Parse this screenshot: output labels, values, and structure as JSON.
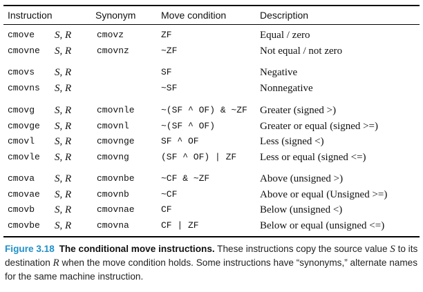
{
  "table": {
    "headers": {
      "instruction": "Instruction",
      "synonym": "Synonym",
      "condition": "Move condition",
      "description": "Description"
    },
    "groups": [
      [
        {
          "instruction": "cmove",
          "operands": "S, R",
          "synonym": "cmovz",
          "condition": "ZF",
          "description": "Equal / zero"
        },
        {
          "instruction": "cmovne",
          "operands": "S, R",
          "synonym": "cmovnz",
          "condition": "~ZF",
          "description": "Not equal / not zero"
        }
      ],
      [
        {
          "instruction": "cmovs",
          "operands": "S, R",
          "synonym": "",
          "condition": "SF",
          "description": "Negative"
        },
        {
          "instruction": "cmovns",
          "operands": "S, R",
          "synonym": "",
          "condition": "~SF",
          "description": "Nonnegative"
        }
      ],
      [
        {
          "instruction": "cmovg",
          "operands": "S, R",
          "synonym": "cmovnle",
          "condition": "~(SF ^ OF) & ~ZF",
          "description": "Greater (signed >)"
        },
        {
          "instruction": "cmovge",
          "operands": "S, R",
          "synonym": "cmovnl",
          "condition": "~(SF ^ OF)",
          "description": "Greater or equal (signed >=)"
        },
        {
          "instruction": "cmovl",
          "operands": "S, R",
          "synonym": "cmovnge",
          "condition": "SF ^ OF",
          "description": "Less (signed <)"
        },
        {
          "instruction": "cmovle",
          "operands": "S, R",
          "synonym": "cmovng",
          "condition": "(SF ^ OF) | ZF",
          "description": "Less or equal (signed <=)"
        }
      ],
      [
        {
          "instruction": "cmova",
          "operands": "S, R",
          "synonym": "cmovnbe",
          "condition": "~CF & ~ZF",
          "description": "Above (unsigned >)"
        },
        {
          "instruction": "cmovae",
          "operands": "S, R",
          "synonym": "cmovnb",
          "condition": "~CF",
          "description": "Above or equal (Unsigned >=)"
        },
        {
          "instruction": "cmovb",
          "operands": "S, R",
          "synonym": "cmovnae",
          "condition": "CF",
          "description": "Below (unsigned <)"
        },
        {
          "instruction": "cmovbe",
          "operands": "S, R",
          "synonym": "cmovna",
          "condition": "CF | ZF",
          "description": "Below or equal (unsigned <=)"
        }
      ]
    ]
  },
  "caption": {
    "figure_label": "Figure 3.18",
    "title": "The conditional move instructions.",
    "text_1": " These instructions copy the source value ",
    "var_s": "S",
    "text_2": " to its destination ",
    "var_r": "R",
    "text_3": " when the move condition holds. Some instructions have “synonyms,” alternate names for the same machine instruction."
  },
  "colors": {
    "figure_label": "#1f8fc9",
    "text": "#111111",
    "rules": "#000000"
  }
}
